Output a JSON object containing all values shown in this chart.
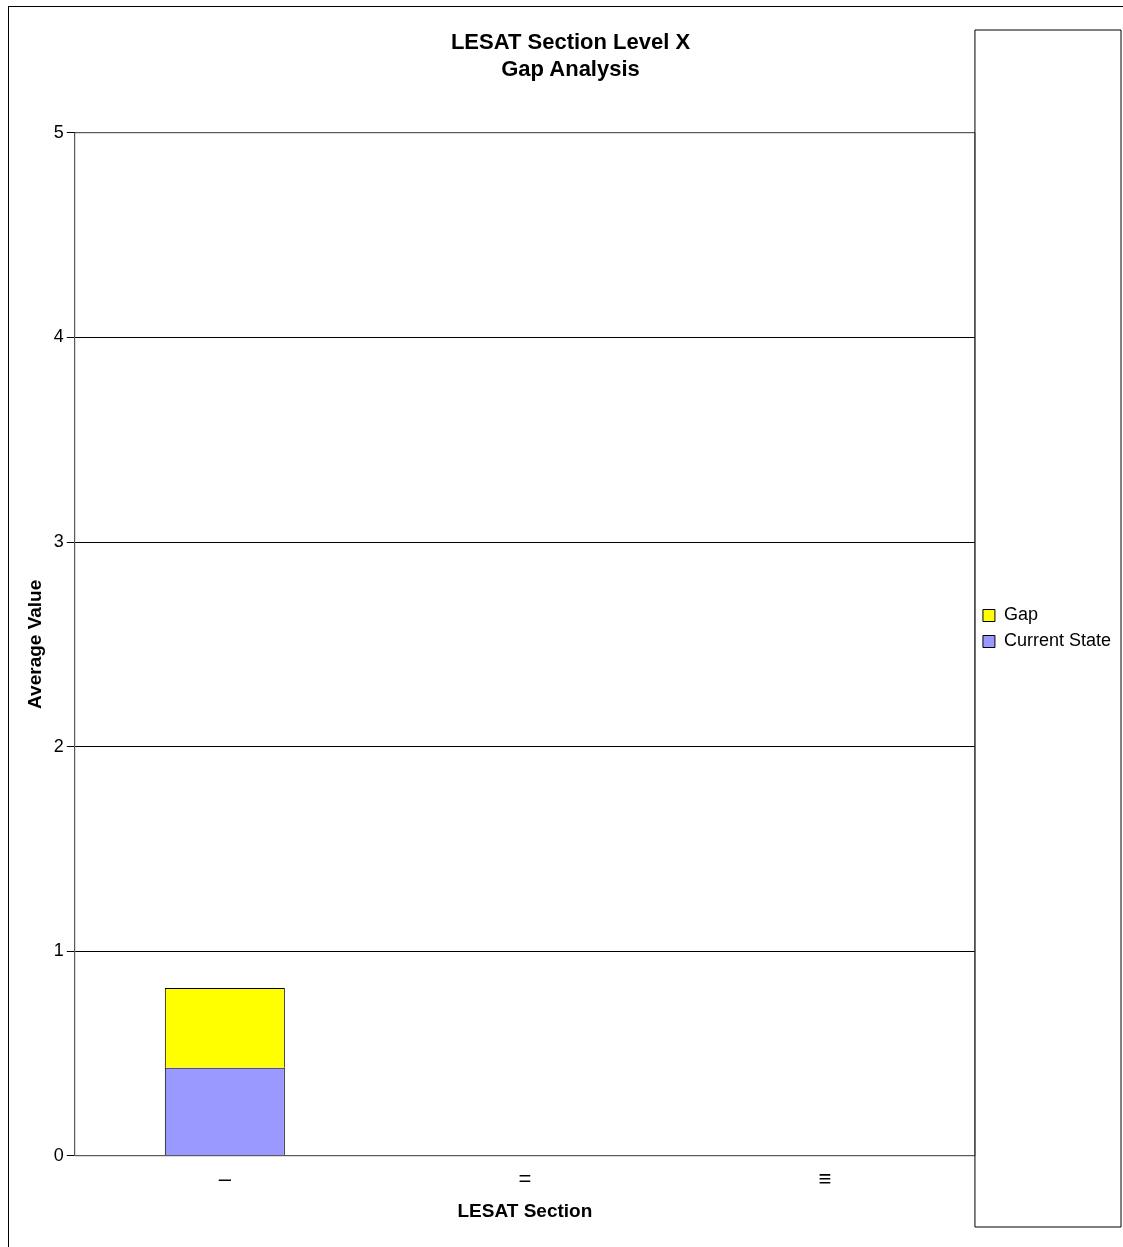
{
  "chart_data": {
    "type": "bar",
    "title": "LESAT Section Level X\nGap Analysis",
    "xlabel": "LESAT Section",
    "ylabel": "Average Value",
    "categories": [
      "–",
      "=",
      "≡"
    ],
    "stacked": true,
    "series": [
      {
        "name": "Current State",
        "color": "#9999ff",
        "values": [
          0.43,
          null,
          null
        ]
      },
      {
        "name": "Gap",
        "color": "#ffff00",
        "values": [
          0.39,
          null,
          null
        ]
      }
    ],
    "ylim": [
      0,
      5
    ],
    "yticks": [
      0,
      1,
      2,
      3,
      4,
      5
    ],
    "grid": "y",
    "legend": "right"
  }
}
